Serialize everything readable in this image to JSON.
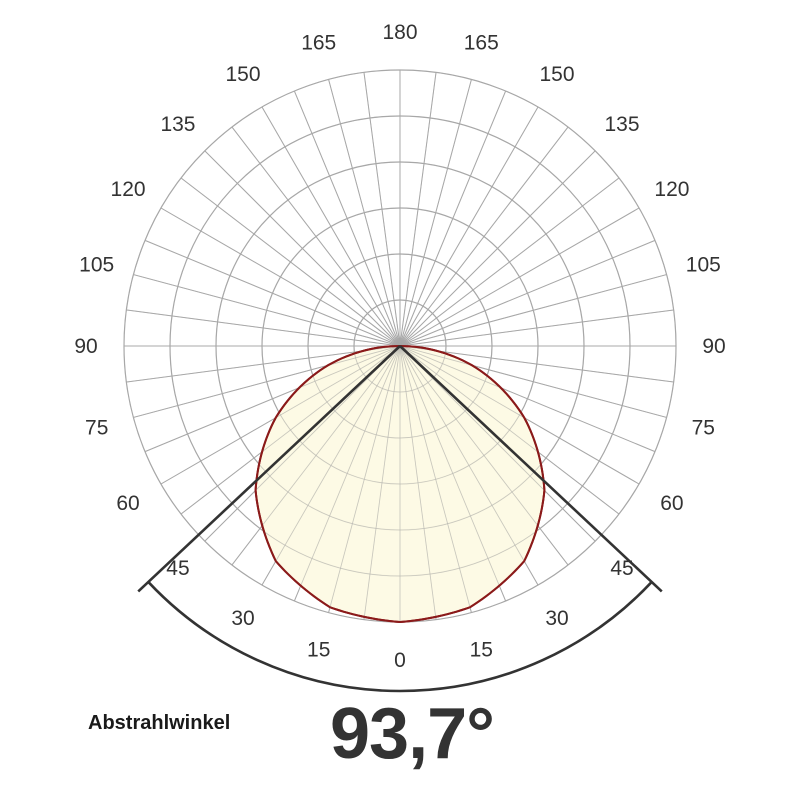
{
  "chart_data": {
    "type": "polar",
    "angle_labels_left": [
      "180",
      "165",
      "150",
      "135",
      "120",
      "105",
      "90",
      "75",
      "60",
      "45",
      "30",
      "15",
      "0"
    ],
    "angle_labels_right": [
      "165",
      "150",
      "135",
      "120",
      "105",
      "90",
      "75",
      "60",
      "45",
      "30",
      "15"
    ],
    "angle_values": [
      0,
      15,
      30,
      45,
      60,
      75,
      90,
      105,
      120,
      135,
      150,
      165,
      180
    ],
    "grid": true,
    "radial_rings": 6,
    "radial_spokes_deg": 7.5,
    "beam_angle_deg": 93.7,
    "distribution": {
      "shape": "ellipse",
      "relative_intensity": [
        {
          "angle": 0,
          "value": 1.0
        },
        {
          "angle": 15,
          "value": 0.98
        },
        {
          "angle": 30,
          "value": 0.9
        },
        {
          "angle": 45,
          "value": 0.74
        },
        {
          "angle": 60,
          "value": 0.52
        },
        {
          "angle": 75,
          "value": 0.27
        },
        {
          "angle": 90,
          "value": 0.0
        }
      ]
    },
    "colors": {
      "grid": "#a8a8a8",
      "fill": "#fdf9e1",
      "outline": "#8b1a1a",
      "beam_lines": "#333333"
    }
  },
  "caption": {
    "label": "Abstrahlwinkel",
    "value": "93,7°"
  }
}
